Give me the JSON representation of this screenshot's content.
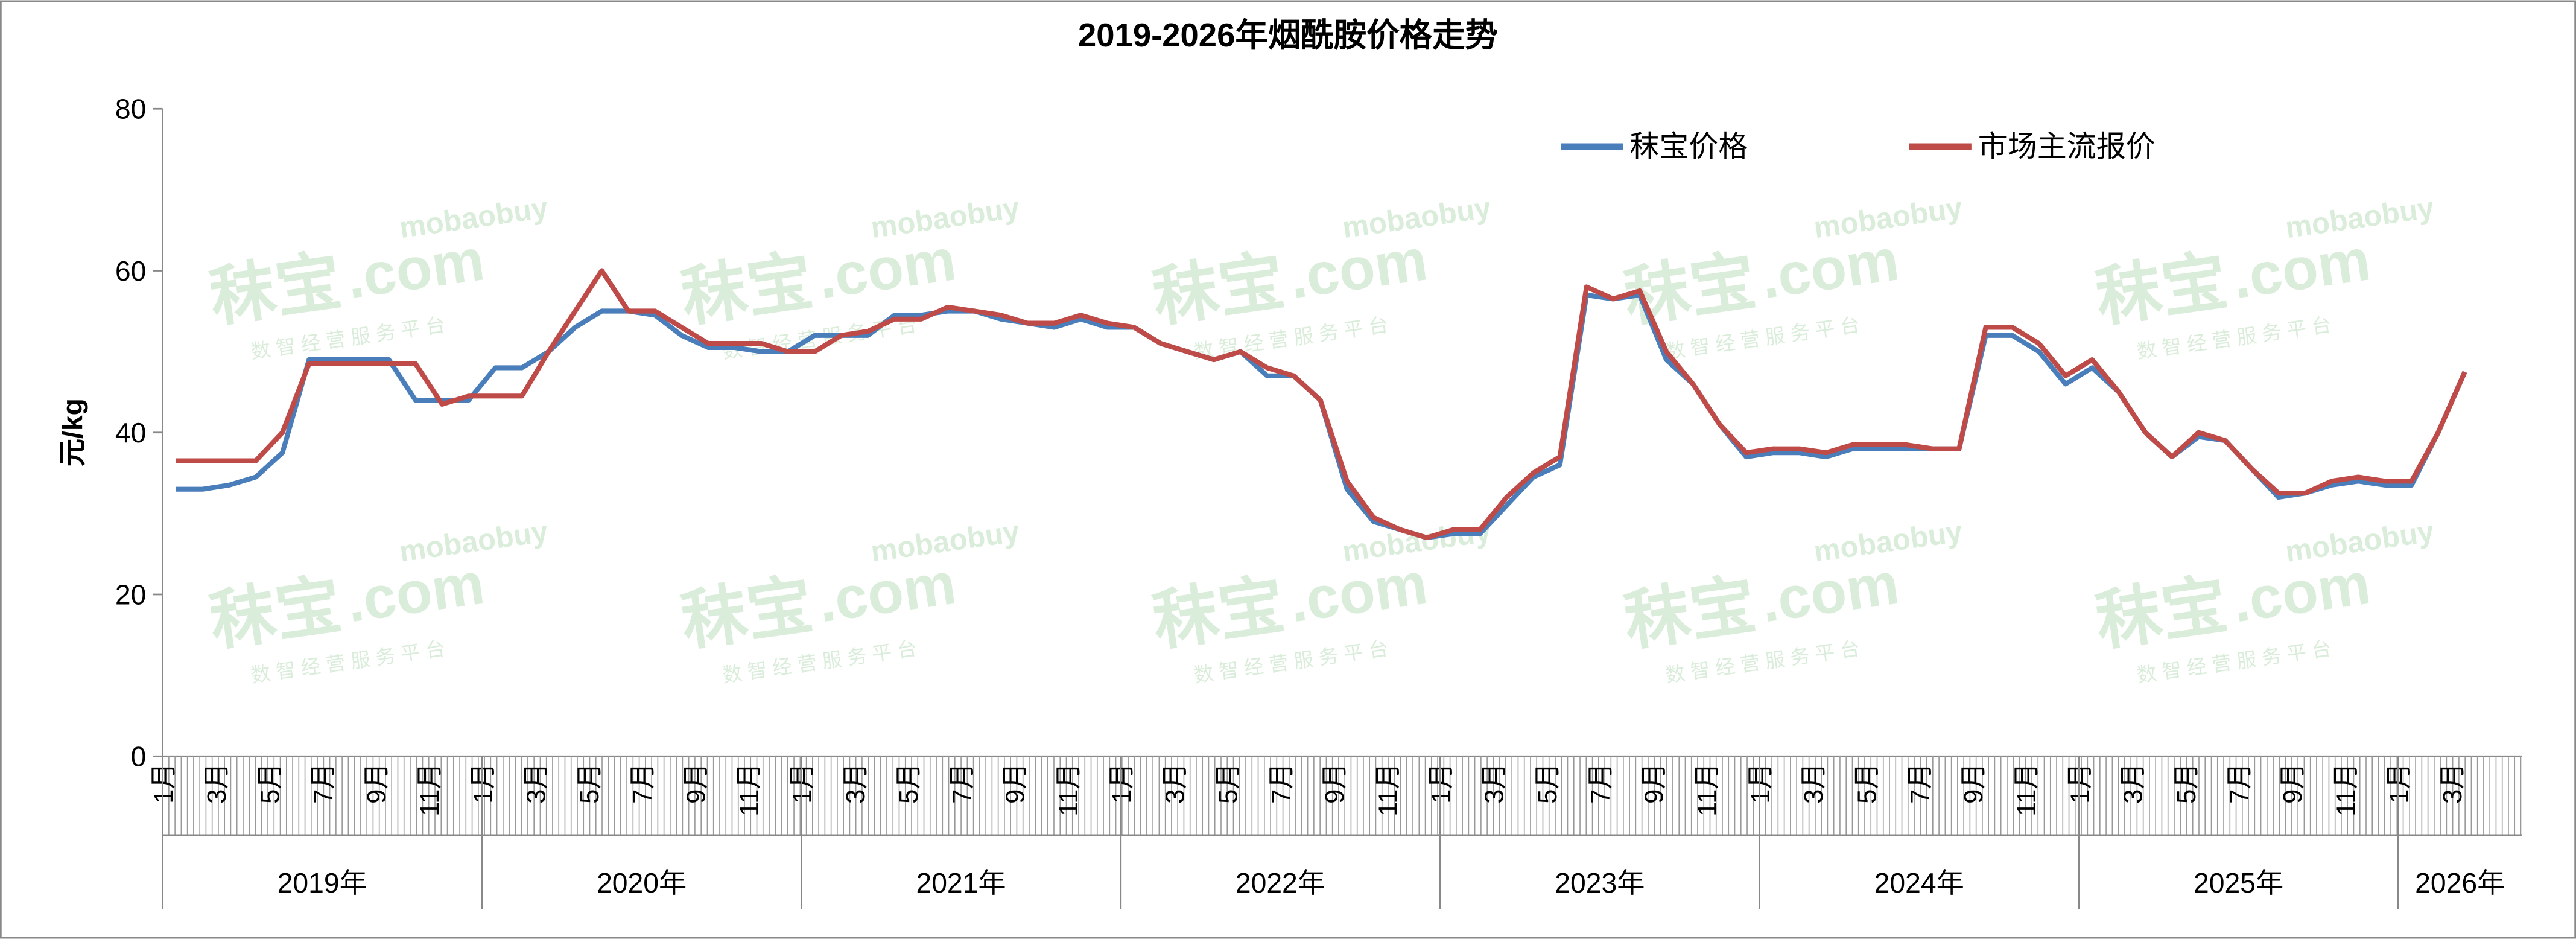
{
  "chart_data": {
    "type": "line",
    "title": "2019-2026年烟酰胺价格走势",
    "y_label": "元/kg",
    "ylim": [
      0,
      80
    ],
    "yticks": [
      0,
      20,
      40,
      60,
      80
    ],
    "legend": "top-right",
    "watermark": {
      "brand": "秣宝",
      "domain": ".com",
      "latin": "mobaobuy",
      "tagline": "数 智 经 营 服 务 平 台"
    },
    "years": [
      "2019年",
      "2020年",
      "2021年",
      "2022年",
      "2023年",
      "2024年",
      "2025年",
      "2026年"
    ],
    "categories": [
      "1月",
      null,
      "3月",
      null,
      "5月",
      null,
      "7月",
      null,
      "9月",
      null,
      "11月",
      null,
      "1月",
      null,
      "3月",
      null,
      "5月",
      null,
      "7月",
      null,
      "9月",
      null,
      "11月",
      null,
      "1月",
      null,
      "3月",
      null,
      "5月",
      null,
      "7月",
      null,
      "9月",
      null,
      "11月",
      null,
      "1月",
      null,
      "3月",
      null,
      "5月",
      null,
      "7月",
      null,
      "9月",
      null,
      "11月",
      null,
      "1月",
      null,
      "3月",
      null,
      "5月",
      null,
      "7月",
      null,
      "9月",
      null,
      "11月",
      null,
      "1月",
      null,
      "3月",
      null,
      "5月",
      null,
      "7月",
      null,
      "9月",
      null,
      "11月",
      null,
      "1月",
      null,
      "3月",
      null,
      "5月",
      null,
      "7月",
      null,
      "9月",
      null,
      "11月",
      null,
      "1月",
      null,
      "3月"
    ],
    "series": [
      {
        "name": "秣宝价格",
        "color": "#4a7ebb",
        "values": [
          33,
          33,
          33.5,
          34.5,
          37.5,
          49,
          49,
          49,
          49,
          44,
          44,
          44,
          48,
          48,
          50,
          53,
          55,
          55,
          54.5,
          52,
          50.5,
          50.5,
          50,
          50,
          52,
          52,
          52,
          54.5,
          54.5,
          55,
          55,
          54,
          53.5,
          53,
          54,
          53,
          53,
          51,
          50,
          49,
          50,
          47,
          47,
          44,
          33,
          29,
          28,
          27,
          27.5,
          27.5,
          31,
          34.5,
          36,
          57,
          56.5,
          57,
          49,
          46,
          41,
          37,
          37.5,
          37.5,
          37,
          38,
          38,
          38,
          38,
          38,
          52,
          52,
          50,
          46,
          48,
          45,
          40,
          37,
          39.5,
          39,
          35.5,
          32,
          32.5,
          33.5,
          34,
          33.5,
          33.5,
          40,
          47.5
        ]
      },
      {
        "name": "市场主流报价",
        "color": "#be4b48",
        "values": [
          36.5,
          36.5,
          36.5,
          36.5,
          40,
          48.5,
          48.5,
          48.5,
          48.5,
          48.5,
          43.5,
          44.5,
          44.5,
          44.5,
          50,
          55,
          60,
          55,
          55,
          53,
          51,
          51,
          51,
          50,
          50,
          52,
          52.5,
          54,
          54,
          55.5,
          55,
          54.5,
          53.5,
          53.5,
          54.5,
          53.5,
          53,
          51,
          50,
          49,
          50,
          48,
          47,
          44,
          34,
          29.5,
          28,
          27,
          28,
          28,
          32,
          35,
          37,
          58,
          56.5,
          57.5,
          50,
          46,
          41,
          37.5,
          38,
          38,
          37.5,
          38.5,
          38.5,
          38.5,
          38,
          38,
          53,
          53,
          51,
          47,
          49,
          45,
          40,
          37,
          40,
          39,
          35.5,
          32.5,
          32.5,
          34,
          34.5,
          34,
          34,
          40,
          47.5
        ]
      }
    ]
  }
}
